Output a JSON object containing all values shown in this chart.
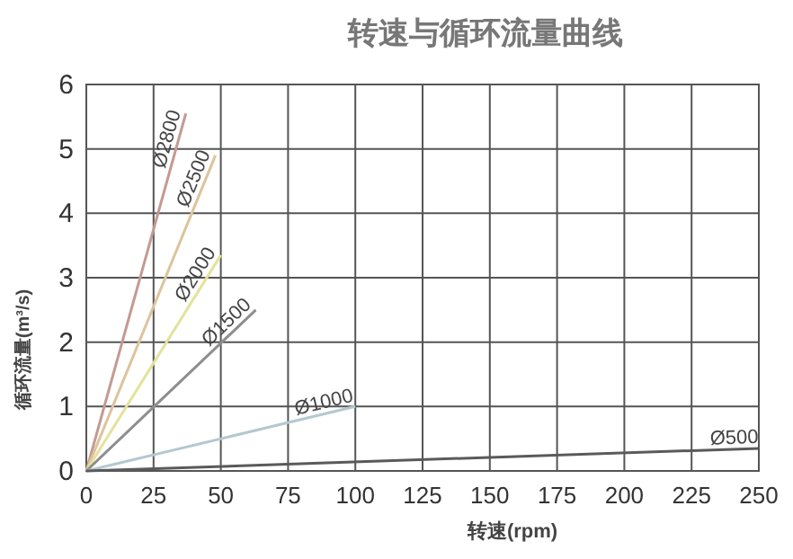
{
  "chart_data": {
    "type": "line",
    "title": "转速与循环流量曲线",
    "xlabel": "转速(rpm)",
    "ylabel": "循环流量(m³/s)",
    "xlim": [
      0,
      250
    ],
    "ylim": [
      0,
      6
    ],
    "xticks": [
      0,
      25,
      50,
      75,
      100,
      125,
      150,
      175,
      200,
      225,
      250
    ],
    "yticks": [
      0,
      1,
      2,
      3,
      4,
      5,
      6
    ],
    "grid": true,
    "series": [
      {
        "name": "Ø2800",
        "color": "#c49a92",
        "x": [
          0,
          37
        ],
        "values": [
          0,
          5.55
        ]
      },
      {
        "name": "Ø2500",
        "color": "#dcc49c",
        "x": [
          0,
          48
        ],
        "values": [
          0,
          4.9
        ]
      },
      {
        "name": "Ø2000",
        "color": "#e4e29c",
        "x": [
          0,
          50
        ],
        "values": [
          0,
          3.35
        ]
      },
      {
        "name": "Ø1500",
        "color": "#8e8e8e",
        "x": [
          0,
          63
        ],
        "values": [
          0,
          2.5
        ]
      },
      {
        "name": "Ø1000",
        "color": "#b4c8d0",
        "x": [
          0,
          100
        ],
        "values": [
          0,
          1.0
        ]
      },
      {
        "name": "Ø500",
        "color": "#5a5a5a",
        "x": [
          0,
          250
        ],
        "values": [
          0,
          0.35
        ]
      }
    ]
  }
}
